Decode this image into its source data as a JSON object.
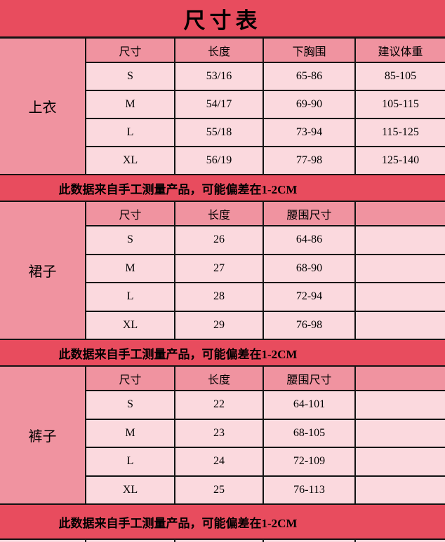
{
  "title": "尺寸表",
  "note": "此数据来自手工测量产品，可能偏差在1-2CM",
  "colors": {
    "banner_red": "#E84C5E",
    "header_pink": "#F093A0",
    "cell_pink": "#FBD9DE",
    "grid_line": "#131313"
  },
  "sections": [
    {
      "label": "上衣",
      "headers": [
        "尺寸",
        "长度",
        "下胸围",
        "建议体重"
      ],
      "rows": [
        [
          "S",
          "53/16",
          "65-86",
          "85-105"
        ],
        [
          "M",
          "54/17",
          "69-90",
          "105-115"
        ],
        [
          "L",
          "55/18",
          "73-94",
          "115-125"
        ],
        [
          "XL",
          "56/19",
          "77-98",
          "125-140"
        ]
      ]
    },
    {
      "label": "裙子",
      "headers": [
        "尺寸",
        "长度",
        "腰围尺寸",
        ""
      ],
      "rows": [
        [
          "S",
          "26",
          "64-86",
          ""
        ],
        [
          "M",
          "27",
          "68-90",
          ""
        ],
        [
          "L",
          "28",
          "72-94",
          ""
        ],
        [
          "XL",
          "29",
          "76-98",
          ""
        ]
      ]
    },
    {
      "label": "裤子",
      "headers": [
        "尺寸",
        "长度",
        "腰围尺寸",
        ""
      ],
      "rows": [
        [
          "S",
          "22",
          "64-101",
          ""
        ],
        [
          "M",
          "23",
          "68-105",
          ""
        ],
        [
          "L",
          "24",
          "72-109",
          ""
        ],
        [
          "XL",
          "25",
          "76-113",
          ""
        ]
      ]
    }
  ]
}
